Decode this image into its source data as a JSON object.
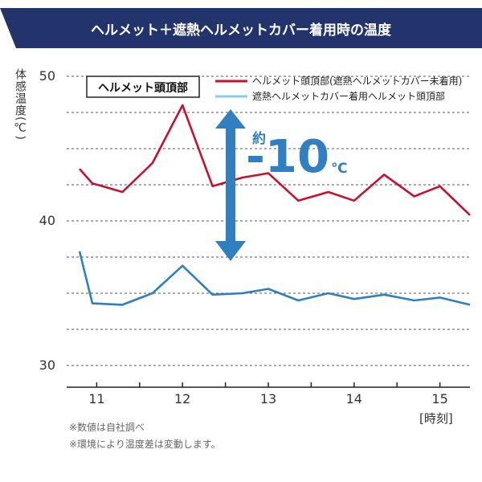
{
  "header": {
    "title": "ヘルメット＋遮熱ヘルメットカバー着用時の温度",
    "bg_color": "#22346b"
  },
  "chart_data": {
    "type": "line",
    "ylabel": "体感温度(℃)",
    "xlabel": "[時刻]",
    "ylim": [
      30,
      50
    ],
    "xlim": [
      10.65,
      15.35
    ],
    "y_ticks": [
      30,
      40,
      50
    ],
    "x_ticks": [
      11,
      12,
      13,
      14,
      15
    ],
    "grid": "dashed horizontal",
    "legend_position": "top",
    "box_label": "ヘルメット頭頂部",
    "series": [
      {
        "name": "ヘルメット頭頂部(遮熱ヘルメットカバー未着用)",
        "color": "#c8102e",
        "x": [
          10.8,
          10.95,
          11.3,
          11.65,
          12.0,
          12.35,
          12.7,
          13.0,
          13.35,
          13.7,
          14.0,
          14.35,
          14.7,
          15.0,
          15.35
        ],
        "y": [
          43.6,
          42.6,
          42.0,
          44.0,
          48.0,
          42.4,
          43.0,
          43.3,
          41.4,
          42.0,
          41.4,
          43.2,
          41.7,
          42.4,
          40.4
        ]
      },
      {
        "name": "遮熱ヘルメットカバー着用ヘルメット頭頂部",
        "color": "#2f7fc1",
        "x": [
          10.8,
          10.95,
          11.3,
          11.65,
          12.0,
          12.35,
          12.7,
          13.0,
          13.35,
          13.7,
          14.0,
          14.35,
          14.7,
          15.0,
          15.35
        ],
        "y": [
          37.9,
          34.3,
          34.2,
          35.0,
          36.9,
          34.9,
          35.0,
          35.3,
          34.5,
          35.0,
          34.6,
          34.9,
          34.5,
          34.7,
          34.2
        ]
      }
    ],
    "annotation": {
      "prefix": "約",
      "value": "-10",
      "unit": "℃",
      "color": "#2f7fc1"
    }
  },
  "notes": [
    "※数値は自社調べ",
    "※環境により温度差は変動します。"
  ]
}
